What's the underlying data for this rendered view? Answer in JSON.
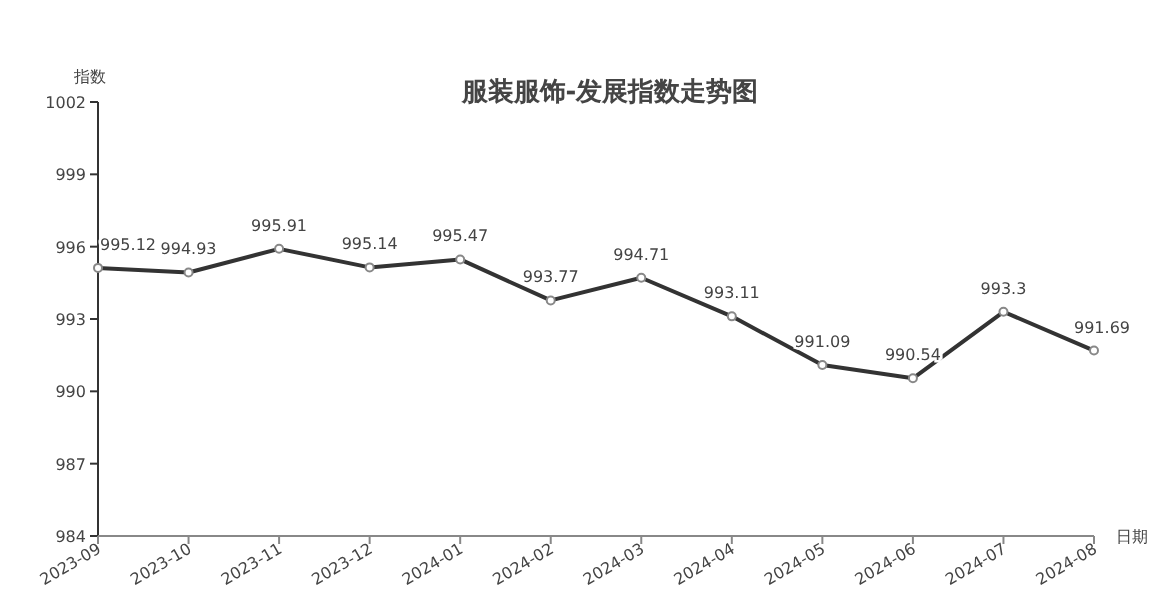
{
  "chart_data": {
    "type": "line",
    "title": "服装服饰-发展指数走势图",
    "xlabel": "日期",
    "ylabel": "指数",
    "categories": [
      "2023-09",
      "2023-10",
      "2023-11",
      "2023-12",
      "2024-01",
      "2024-02",
      "2024-03",
      "2024-04",
      "2024-05",
      "2024-06",
      "2024-07",
      "2024-08"
    ],
    "series": [
      {
        "color": "#333333",
        "values": [
          995.12,
          994.93,
          995.91,
          995.14,
          995.47,
          993.77,
          994.71,
          993.11,
          991.09,
          990.54,
          993.3,
          991.69
        ]
      }
    ],
    "ylim": [
      984,
      1002
    ],
    "yticks": [
      984,
      987,
      990,
      993,
      996,
      999,
      1002
    ],
    "data_labels": true,
    "marker": "circle",
    "grid": false
  }
}
